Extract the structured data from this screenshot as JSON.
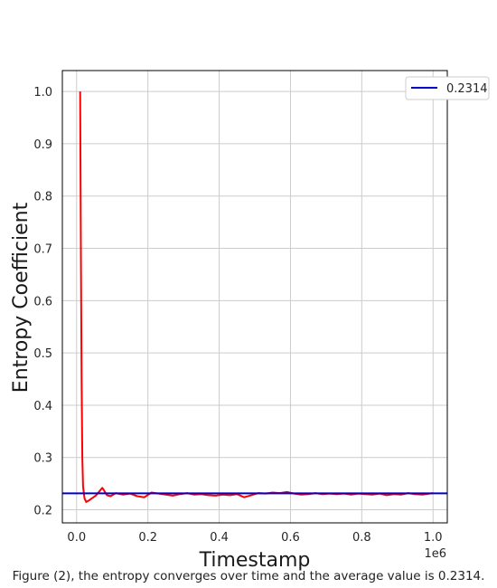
{
  "caption": "Figure (2), the entropy converges over time and the average value is 0.2314.",
  "chart_data": {
    "type": "line",
    "title": "",
    "xlabel": "Timestamp",
    "ylabel": "Entropy Coefficient",
    "x_offset_label": "1e6",
    "xlim": [
      -0.04,
      1.04
    ],
    "ylim": [
      0.175,
      1.04
    ],
    "grid": true,
    "legend_position": "upper-right-outside",
    "x_ticks": [
      {
        "value": 0.0,
        "label": "0.0"
      },
      {
        "value": 0.2,
        "label": "0.2"
      },
      {
        "value": 0.4,
        "label": "0.4"
      },
      {
        "value": 0.6,
        "label": "0.6"
      },
      {
        "value": 0.8,
        "label": "0.8"
      },
      {
        "value": 1.0,
        "label": "1.0"
      }
    ],
    "y_ticks": [
      {
        "value": 0.2,
        "label": "0.2"
      },
      {
        "value": 0.3,
        "label": "0.3"
      },
      {
        "value": 0.4,
        "label": "0.4"
      },
      {
        "value": 0.5,
        "label": "0.5"
      },
      {
        "value": 0.6,
        "label": "0.6"
      },
      {
        "value": 0.7,
        "label": "0.7"
      },
      {
        "value": 0.8,
        "label": "0.8"
      },
      {
        "value": 0.9,
        "label": "0.9"
      },
      {
        "value": 1.0,
        "label": "1.0"
      }
    ],
    "series": [
      {
        "color": "#ff0000",
        "points": [
          [
            0.01,
            1.0
          ],
          [
            0.012,
            0.7
          ],
          [
            0.014,
            0.45
          ],
          [
            0.016,
            0.3
          ],
          [
            0.018,
            0.245
          ],
          [
            0.022,
            0.222
          ],
          [
            0.027,
            0.215
          ],
          [
            0.035,
            0.218
          ],
          [
            0.045,
            0.223
          ],
          [
            0.055,
            0.228
          ],
          [
            0.065,
            0.236
          ],
          [
            0.072,
            0.242
          ],
          [
            0.078,
            0.236
          ],
          [
            0.085,
            0.228
          ],
          [
            0.095,
            0.226
          ],
          [
            0.11,
            0.232
          ],
          [
            0.13,
            0.229
          ],
          [
            0.15,
            0.231
          ],
          [
            0.17,
            0.226
          ],
          [
            0.19,
            0.224
          ],
          [
            0.21,
            0.233
          ],
          [
            0.23,
            0.231
          ],
          [
            0.25,
            0.229
          ],
          [
            0.27,
            0.227
          ],
          [
            0.29,
            0.23
          ],
          [
            0.31,
            0.232
          ],
          [
            0.33,
            0.229
          ],
          [
            0.35,
            0.23
          ],
          [
            0.37,
            0.228
          ],
          [
            0.39,
            0.227
          ],
          [
            0.41,
            0.229
          ],
          [
            0.43,
            0.228
          ],
          [
            0.45,
            0.23
          ],
          [
            0.47,
            0.224
          ],
          [
            0.49,
            0.228
          ],
          [
            0.51,
            0.232
          ],
          [
            0.53,
            0.231
          ],
          [
            0.55,
            0.233
          ],
          [
            0.57,
            0.232
          ],
          [
            0.59,
            0.234
          ],
          [
            0.61,
            0.231
          ],
          [
            0.63,
            0.229
          ],
          [
            0.65,
            0.23
          ],
          [
            0.67,
            0.232
          ],
          [
            0.69,
            0.23
          ],
          [
            0.71,
            0.231
          ],
          [
            0.73,
            0.23
          ],
          [
            0.75,
            0.231
          ],
          [
            0.77,
            0.229
          ],
          [
            0.79,
            0.231
          ],
          [
            0.81,
            0.23
          ],
          [
            0.83,
            0.229
          ],
          [
            0.85,
            0.231
          ],
          [
            0.87,
            0.228
          ],
          [
            0.89,
            0.23
          ],
          [
            0.91,
            0.229
          ],
          [
            0.93,
            0.232
          ],
          [
            0.95,
            0.23
          ],
          [
            0.97,
            0.229
          ],
          [
            0.99,
            0.231
          ],
          [
            1.0,
            0.232
          ]
        ]
      },
      {
        "name": "0.2314",
        "type": "hline",
        "color": "#0000cc",
        "value": 0.2314
      }
    ]
  }
}
